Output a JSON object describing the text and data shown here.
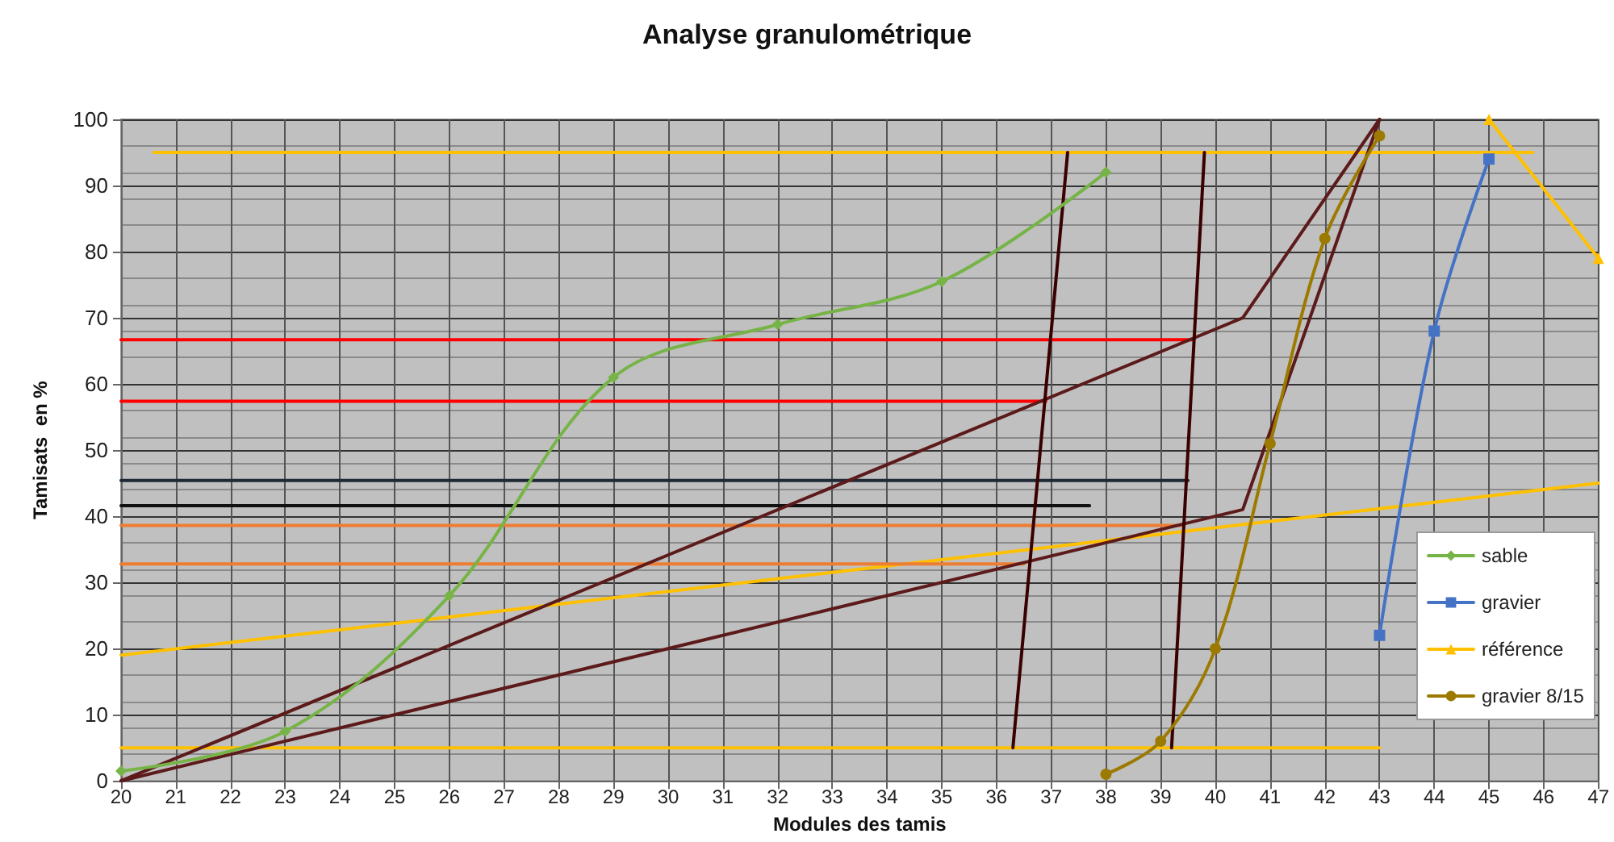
{
  "chart_data": {
    "type": "line",
    "title": "Analyse granulométrique",
    "xlabel": "Modules des tamis",
    "ylabel": "Tamisats  en %",
    "xlim": [
      20,
      47
    ],
    "xticks": [
      20,
      21,
      22,
      23,
      24,
      25,
      26,
      27,
      28,
      29,
      30,
      31,
      32,
      33,
      34,
      35,
      36,
      37,
      38,
      39,
      40,
      41,
      42,
      43,
      44,
      45,
      46,
      47
    ],
    "ylim": [
      0,
      100
    ],
    "yticks": [
      0,
      10,
      20,
      30,
      40,
      50,
      60,
      70,
      80,
      90,
      100
    ],
    "grid": true,
    "legend": "right",
    "marker": "none",
    "line_style": "solid",
    "series": [
      {
        "color": "#ffc000",
        "x": [
          20.6,
          45.8
        ],
        "values": [
          95,
          95
        ]
      },
      {
        "color": "#ffc000",
        "x": [
          20,
          43
        ],
        "values": [
          5,
          5
        ]
      },
      {
        "color": "#ffc000",
        "x": [
          20,
          47
        ],
        "values": [
          19,
          45
        ]
      },
      {
        "color": "#ff0000",
        "x": [
          20,
          39.6
        ],
        "values": [
          66.7,
          66.7
        ]
      },
      {
        "color": "#ff0000",
        "x": [
          20,
          36.9
        ],
        "values": [
          57.4,
          57.4
        ]
      },
      {
        "color": "#1f2a36",
        "x": [
          20,
          39.5
        ],
        "values": [
          45.4,
          45.4
        ]
      },
      {
        "color": "#111111",
        "x": [
          20,
          37.7
        ],
        "values": [
          41.6,
          41.6
        ]
      },
      {
        "color": "#ed7d31",
        "x": [
          20,
          39.4
        ],
        "values": [
          38.6,
          38.6
        ]
      },
      {
        "color": "#ed7d31",
        "x": [
          20,
          36.5
        ],
        "values": [
          32.8,
          32.8
        ]
      },
      {
        "color": "#5c1a1a",
        "x": [
          20,
          40.5,
          43
        ],
        "values": [
          0,
          70,
          100
        ]
      },
      {
        "color": "#5c1a1a",
        "x": [
          20,
          40.5,
          43
        ],
        "values": [
          0,
          41,
          100
        ]
      },
      {
        "color": "#3a0000",
        "x": [
          36.3,
          37.3
        ],
        "values": [
          5,
          95
        ]
      },
      {
        "color": "#3a0000",
        "x": [
          39.2,
          39.8
        ],
        "values": [
          5,
          95
        ]
      },
      {
        "name": "sable",
        "color": "#77b447",
        "marker": "diamond",
        "x": [
          20,
          23,
          26,
          29,
          32,
          35,
          38
        ],
        "values": [
          1.5,
          7.5,
          28,
          61,
          69,
          75.5,
          92
        ]
      },
      {
        "name": "gravier",
        "color": "#4472c4",
        "marker": "square",
        "x": [
          43,
          44,
          45
        ],
        "values": [
          22,
          68,
          94
        ]
      },
      {
        "name": "référence",
        "color": "#ffc000",
        "marker": "triangle",
        "x": [
          45,
          47
        ],
        "values": [
          100,
          79
        ]
      },
      {
        "name": "gravier 8/15",
        "color": "#9c7a00",
        "marker": "circle",
        "x": [
          38,
          39,
          40,
          41,
          42,
          43
        ],
        "values": [
          1,
          6,
          20,
          51,
          82,
          97.5
        ]
      }
    ]
  }
}
